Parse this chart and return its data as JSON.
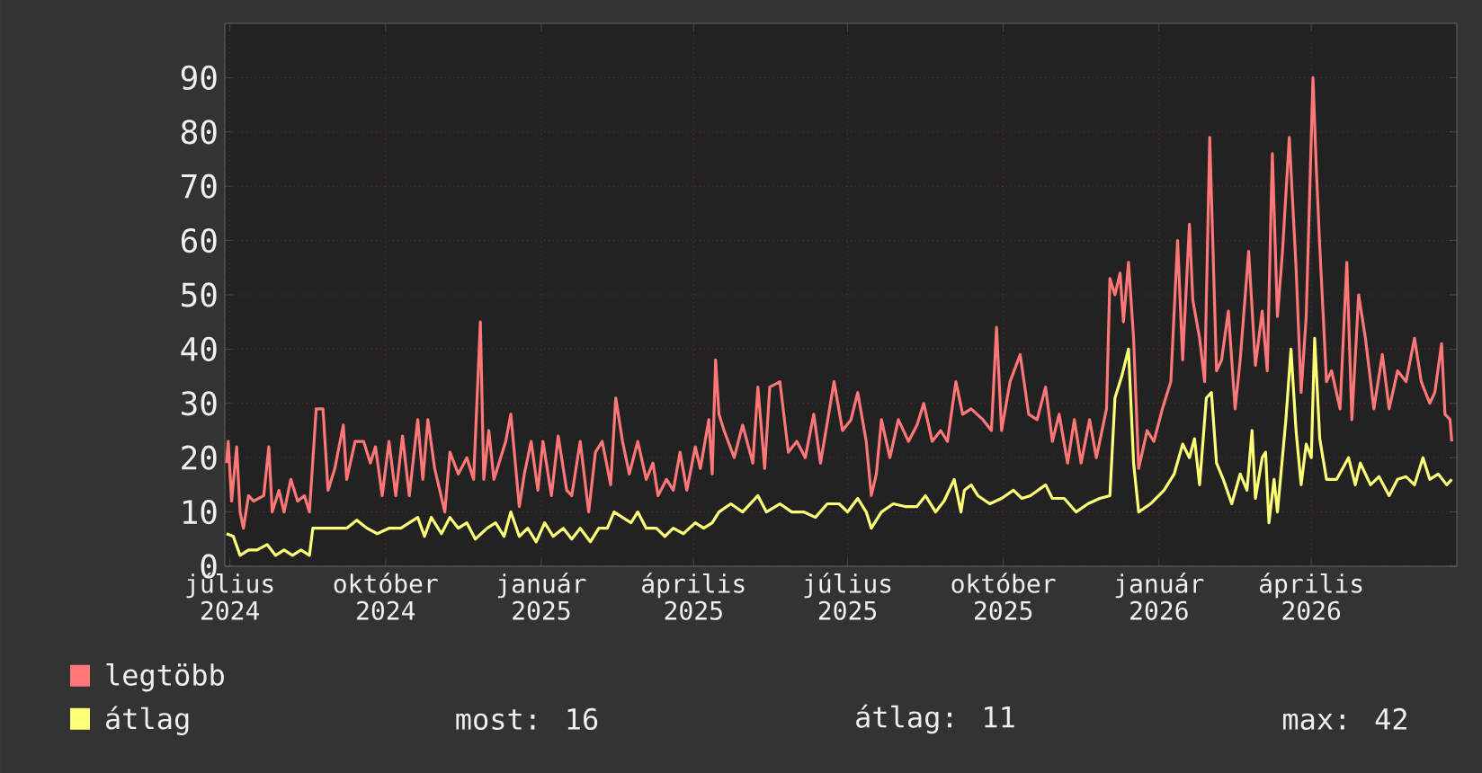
{
  "chart_data": {
    "type": "line",
    "xlim": [
      "2024-06-28",
      "2026-06-26"
    ],
    "xticks": [
      {
        "value": "2024-07-01",
        "label": "július 2024"
      },
      {
        "value": "2024-10-01",
        "label": "október 2024"
      },
      {
        "value": "2025-01-01",
        "label": "január 2025"
      },
      {
        "value": "2025-04-01",
        "label": "április 2025"
      },
      {
        "value": "2025-07-01",
        "label": "július 2025"
      },
      {
        "value": "2025-10-01",
        "label": "október 2025"
      },
      {
        "value": "2026-01-01",
        "label": "január 2026"
      },
      {
        "value": "2026-04-01",
        "label": "április 2026"
      }
    ],
    "ylim": [
      0,
      100
    ],
    "yticks": [
      0,
      10,
      20,
      30,
      40,
      50,
      60,
      70,
      80,
      90
    ],
    "grid": true,
    "legend": "bottom",
    "marker": "none",
    "line_style": "solid",
    "annotations": [
      "most: 16",
      "átlag: 11",
      "max: 42"
    ],
    "series": [
      {
        "name": "legtöbb",
        "color": "#ff7777",
        "x": [
          "2024-06-29",
          "2024-06-30",
          "2024-07-02",
          "2024-07-05",
          "2024-07-07",
          "2024-07-09",
          "2024-07-12",
          "2024-07-15",
          "2024-07-21",
          "2024-07-24",
          "2024-07-26",
          "2024-07-30",
          "2024-08-02",
          "2024-08-06",
          "2024-08-10",
          "2024-08-14",
          "2024-08-17",
          "2024-08-21",
          "2024-08-25",
          "2024-08-28",
          "2024-09-01",
          "2024-09-06",
          "2024-09-08",
          "2024-09-13",
          "2024-09-18",
          "2024-09-22",
          "2024-09-25",
          "2024-09-29",
          "2024-10-03",
          "2024-10-07",
          "2024-10-11",
          "2024-10-15",
          "2024-10-20",
          "2024-10-23",
          "2024-10-26",
          "2024-10-30",
          "2024-11-05",
          "2024-11-08",
          "2024-11-13",
          "2024-11-18",
          "2024-11-22",
          "2024-11-26",
          "2024-11-28",
          "2024-12-01",
          "2024-12-04",
          "2024-12-07",
          "2024-12-11",
          "2024-12-14",
          "2024-12-19",
          "2024-12-22",
          "2024-12-26",
          "2024-12-30",
          "2025-01-02",
          "2025-01-07",
          "2025-01-11",
          "2025-01-16",
          "2025-01-19",
          "2025-01-24",
          "2025-01-29",
          "2025-02-02",
          "2025-02-06",
          "2025-02-11",
          "2025-02-14",
          "2025-02-18",
          "2025-02-22",
          "2025-02-27",
          "2025-03-04",
          "2025-03-08",
          "2025-03-11",
          "2025-03-16",
          "2025-03-20",
          "2025-03-24",
          "2025-03-28",
          "2025-04-02",
          "2025-04-05",
          "2025-04-10",
          "2025-04-12",
          "2025-04-14",
          "2025-04-16",
          "2025-04-19",
          "2025-04-25",
          "2025-04-30",
          "2025-05-06",
          "2025-05-09",
          "2025-05-13",
          "2025-05-16",
          "2025-05-22",
          "2025-05-27",
          "2025-06-01",
          "2025-06-06",
          "2025-06-11",
          "2025-06-15",
          "2025-06-23",
          "2025-06-28",
          "2025-07-03",
          "2025-07-07",
          "2025-07-12",
          "2025-07-15",
          "2025-07-18",
          "2025-07-21",
          "2025-07-26",
          "2025-07-31",
          "2025-08-06",
          "2025-08-11",
          "2025-08-15",
          "2025-08-20",
          "2025-08-25",
          "2025-08-29",
          "2025-09-03",
          "2025-09-07",
          "2025-09-12",
          "2025-09-19",
          "2025-09-24",
          "2025-09-27",
          "2025-09-30",
          "2025-10-05",
          "2025-10-11",
          "2025-10-16",
          "2025-10-21",
          "2025-10-26",
          "2025-10-30",
          "2025-11-03",
          "2025-11-08",
          "2025-11-12",
          "2025-11-16",
          "2025-11-21",
          "2025-11-25",
          "2025-12-01",
          "2025-12-03",
          "2025-12-06",
          "2025-12-09",
          "2025-12-11",
          "2025-12-14",
          "2025-12-17",
          "2025-12-20",
          "2025-12-25",
          "2025-12-29",
          "2026-01-03",
          "2026-01-08",
          "2026-01-12",
          "2026-01-15",
          "2026-01-19",
          "2026-01-21",
          "2026-01-25",
          "2026-01-28",
          "2026-01-31",
          "2026-02-04",
          "2026-02-07",
          "2026-02-11",
          "2026-02-15",
          "2026-02-18",
          "2026-02-23",
          "2026-02-27",
          "2026-03-03",
          "2026-03-06",
          "2026-03-09",
          "2026-03-12",
          "2026-03-15",
          "2026-03-19",
          "2026-03-23",
          "2026-03-26",
          "2026-03-29",
          "2026-04-02",
          "2026-04-04",
          "2026-04-06",
          "2026-04-10",
          "2026-04-13",
          "2026-04-18",
          "2026-04-22",
          "2026-04-25",
          "2026-04-29",
          "2026-05-03",
          "2026-05-08",
          "2026-05-13",
          "2026-05-17",
          "2026-05-22",
          "2026-05-27",
          "2026-06-01",
          "2026-06-05",
          "2026-06-10",
          "2026-06-13",
          "2026-06-17",
          "2026-06-19",
          "2026-06-22",
          "2026-06-23"
        ],
        "values": [
          19,
          23,
          12,
          22,
          10,
          7,
          13,
          12,
          13,
          22,
          10,
          14,
          10,
          16,
          12,
          13,
          10,
          29,
          29,
          14,
          18,
          26,
          16,
          23,
          23,
          19,
          22,
          13,
          23,
          13,
          24,
          13,
          27,
          16,
          27,
          18,
          10,
          21,
          17,
          20,
          16,
          45,
          16,
          25,
          16,
          19,
          23,
          28,
          11,
          17,
          23,
          14,
          23,
          13,
          24,
          14,
          13,
          23,
          10,
          21,
          23,
          15,
          31,
          23,
          17,
          23,
          16,
          19,
          13,
          16,
          14,
          21,
          14,
          22,
          18,
          27,
          17,
          38,
          28,
          25,
          20,
          26,
          19,
          33,
          18,
          33,
          34,
          21,
          23,
          20,
          28,
          19,
          34,
          25,
          27,
          32,
          23,
          13,
          17,
          27,
          20,
          27,
          23,
          26,
          30,
          23,
          25,
          23,
          34,
          28,
          29,
          27,
          25,
          44,
          25,
          34,
          39,
          28,
          27,
          33,
          23,
          28,
          19,
          27,
          19,
          27,
          20,
          29,
          53,
          50,
          54,
          45,
          56,
          42,
          18,
          25,
          23,
          29,
          34,
          60,
          38,
          63,
          49,
          42,
          34,
          79,
          36,
          38,
          47,
          29,
          38,
          58,
          37,
          47,
          36,
          76,
          46,
          58,
          79,
          55,
          32,
          46,
          90,
          73,
          59,
          34,
          36,
          29,
          56,
          27,
          50,
          42,
          29,
          39,
          29,
          36,
          34,
          42,
          34,
          30,
          32,
          41,
          28,
          27,
          23
        ]
      },
      {
        "name": "átlag",
        "color": "#ffff77",
        "x": [
          "2024-06-29",
          "2024-07-03",
          "2024-07-07",
          "2024-07-12",
          "2024-07-17",
          "2024-07-23",
          "2024-07-28",
          "2024-08-02",
          "2024-08-07",
          "2024-08-12",
          "2024-08-17",
          "2024-08-19",
          "2024-08-25",
          "2024-09-01",
          "2024-09-08",
          "2024-09-14",
          "2024-09-20",
          "2024-09-26",
          "2024-10-03",
          "2024-10-10",
          "2024-10-15",
          "2024-10-20",
          "2024-10-24",
          "2024-10-28",
          "2024-11-03",
          "2024-11-08",
          "2024-11-13",
          "2024-11-18",
          "2024-11-23",
          "2024-11-30",
          "2024-12-05",
          "2024-12-10",
          "2024-12-14",
          "2024-12-19",
          "2024-12-24",
          "2024-12-29",
          "2025-01-03",
          "2025-01-08",
          "2025-01-14",
          "2025-01-19",
          "2025-01-24",
          "2025-01-30",
          "2025-02-04",
          "2025-02-09",
          "2025-02-13",
          "2025-02-18",
          "2025-02-23",
          "2025-02-27",
          "2025-03-04",
          "2025-03-10",
          "2025-03-15",
          "2025-03-20",
          "2025-03-26",
          "2025-04-02",
          "2025-04-07",
          "2025-04-12",
          "2025-04-16",
          "2025-04-23",
          "2025-04-30",
          "2025-05-09",
          "2025-05-14",
          "2025-05-22",
          "2025-05-29",
          "2025-06-05",
          "2025-06-12",
          "2025-06-19",
          "2025-06-26",
          "2025-07-01",
          "2025-07-07",
          "2025-07-12",
          "2025-07-15",
          "2025-07-21",
          "2025-07-28",
          "2025-08-04",
          "2025-08-11",
          "2025-08-16",
          "2025-08-22",
          "2025-08-27",
          "2025-09-02",
          "2025-09-06",
          "2025-09-08",
          "2025-09-12",
          "2025-09-16",
          "2025-09-23",
          "2025-09-30",
          "2025-10-07",
          "2025-10-12",
          "2025-10-17",
          "2025-10-26",
          "2025-10-30",
          "2025-11-06",
          "2025-11-13",
          "2025-11-20",
          "2025-11-27",
          "2025-12-03",
          "2025-12-06",
          "2025-12-10",
          "2025-12-14",
          "2025-12-17",
          "2025-12-20",
          "2025-12-27",
          "2026-01-04",
          "2026-01-10",
          "2026-01-15",
          "2026-01-19",
          "2026-01-22",
          "2026-01-25",
          "2026-01-29",
          "2026-02-01",
          "2026-02-04",
          "2026-02-08",
          "2026-02-13",
          "2026-02-18",
          "2026-02-22",
          "2026-02-25",
          "2026-02-27",
          "2026-03-03",
          "2026-03-05",
          "2026-03-07",
          "2026-03-10",
          "2026-03-12",
          "2026-03-17",
          "2026-03-20",
          "2026-03-23",
          "2026-03-26",
          "2026-03-29",
          "2026-04-01",
          "2026-04-03",
          "2026-04-06",
          "2026-04-10",
          "2026-04-16",
          "2026-04-23",
          "2026-04-27",
          "2026-04-30",
          "2026-05-06",
          "2026-05-11",
          "2026-05-17",
          "2026-05-22",
          "2026-05-27",
          "2026-06-01",
          "2026-06-06",
          "2026-06-10",
          "2026-06-15",
          "2026-06-20",
          "2026-06-23"
        ],
        "values": [
          6,
          5.5,
          2,
          3,
          3,
          4,
          2,
          3,
          2,
          3,
          2,
          7,
          7,
          7,
          7,
          8.5,
          7,
          6,
          7,
          7,
          8,
          9,
          5.5,
          9,
          6,
          9,
          7,
          8,
          5,
          7,
          8,
          5.5,
          10,
          5.5,
          7,
          4.5,
          8,
          5.5,
          7,
          5,
          7,
          4.5,
          7,
          7,
          10,
          9,
          8,
          10,
          7,
          7,
          5.5,
          7,
          6,
          8,
          7,
          8,
          10,
          11.5,
          10,
          13,
          10,
          11.5,
          10,
          10,
          9,
          11.5,
          11.5,
          10,
          12.5,
          10,
          7,
          10,
          11.5,
          11,
          11,
          13,
          10,
          12,
          16,
          10,
          14,
          15,
          13,
          11.5,
          12.5,
          14,
          12.5,
          13,
          15,
          12.5,
          12.5,
          10,
          11.5,
          12.5,
          13,
          31,
          35,
          40,
          19,
          10,
          11.5,
          14,
          17,
          22.5,
          20,
          23.5,
          15,
          31,
          32,
          19,
          16,
          11.5,
          17,
          14,
          25,
          12.5,
          20,
          21,
          8,
          16,
          10,
          27,
          40,
          25,
          15,
          22.5,
          20,
          42,
          23.5,
          16,
          16,
          20,
          15,
          19,
          15,
          16.5,
          13,
          16,
          16.5,
          15,
          20,
          16,
          17,
          15,
          16
        ]
      }
    ]
  }
}
